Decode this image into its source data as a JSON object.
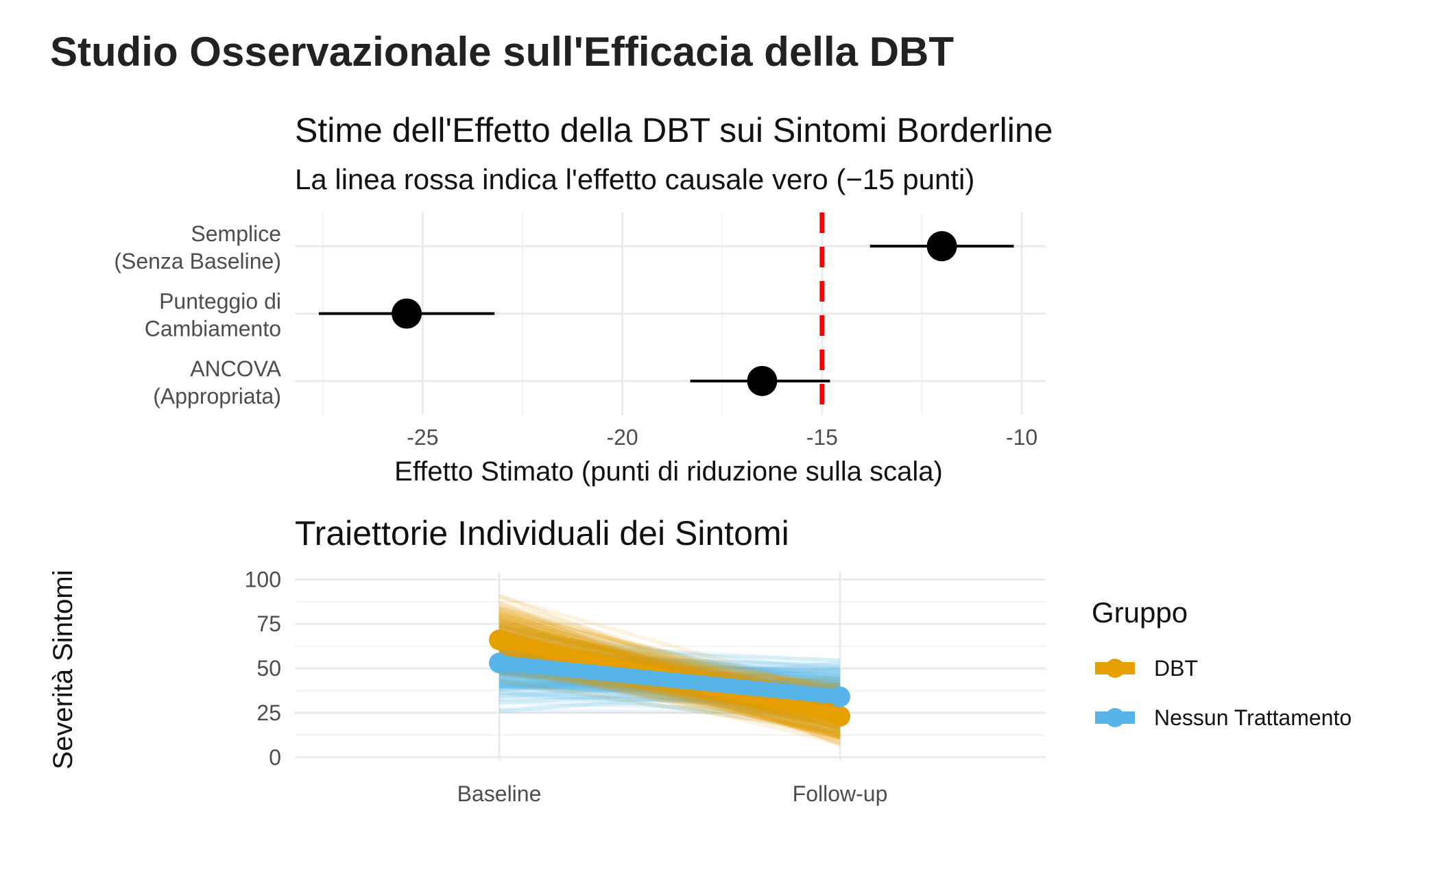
{
  "title": "Studio Osservazionale sull'Efficacia della DBT",
  "chart_data": [
    {
      "type": "forest",
      "title": "Stime dell'Effetto della DBT sui Sintomi Borderline",
      "subtitle": "La linea rossa indica l'effetto causale vero (−15 punti)",
      "xlabel": "Effetto Stimato (punti di riduzione sulla scala)",
      "ylabel": "",
      "xlim": [
        -28.2,
        -9.4
      ],
      "x_ticks": [
        -25,
        -20,
        -15,
        -10
      ],
      "x_tick_labels": [
        "-25",
        "-20",
        "-15",
        "-10"
      ],
      "grid": true,
      "reference_line": {
        "x": -15,
        "color": "#ff0000",
        "style": "dashed"
      },
      "categories": [
        {
          "line1": "Semplice",
          "line2": "(Senza Baseline)"
        },
        {
          "line1": "Punteggio di",
          "line2": "Cambiamento"
        },
        {
          "line1": "ANCOVA",
          "line2": "(Appropriata)"
        }
      ],
      "estimates": [
        -12.0,
        -25.4,
        -16.5
      ],
      "ci_low": [
        -13.8,
        -27.6,
        -18.3
      ],
      "ci_high": [
        -10.2,
        -23.2,
        -14.8
      ],
      "point_color": "#000000"
    },
    {
      "type": "line",
      "title": "Traiettorie Individuali dei Sintomi",
      "xlabel": "",
      "ylabel": "Severità Sintomi",
      "categories": [
        "Baseline",
        "Follow-up"
      ],
      "ylim": [
        -2,
        104
      ],
      "y_ticks": [
        0,
        25,
        50,
        75,
        100
      ],
      "y_tick_labels": [
        "0",
        "25",
        "50",
        "75",
        "100"
      ],
      "grid": true,
      "legend": {
        "title": "Gruppo",
        "position": "right"
      },
      "series": [
        {
          "name": "DBT",
          "color": "#E69F00",
          "values": [
            66,
            23
          ]
        },
        {
          "name": "Nessun Trattamento",
          "color": "#56B4E9",
          "values": [
            53,
            34
          ]
        }
      ],
      "individual_trajectories": {
        "DBT": {
          "baseline_range": [
            38,
            100
          ],
          "followup_range": [
            0,
            50
          ],
          "opacity": 0.12
        },
        "Nessun Trattamento": {
          "baseline_range": [
            20,
            85
          ],
          "followup_range": [
            10,
            62
          ],
          "opacity": 0.12
        }
      }
    }
  ]
}
